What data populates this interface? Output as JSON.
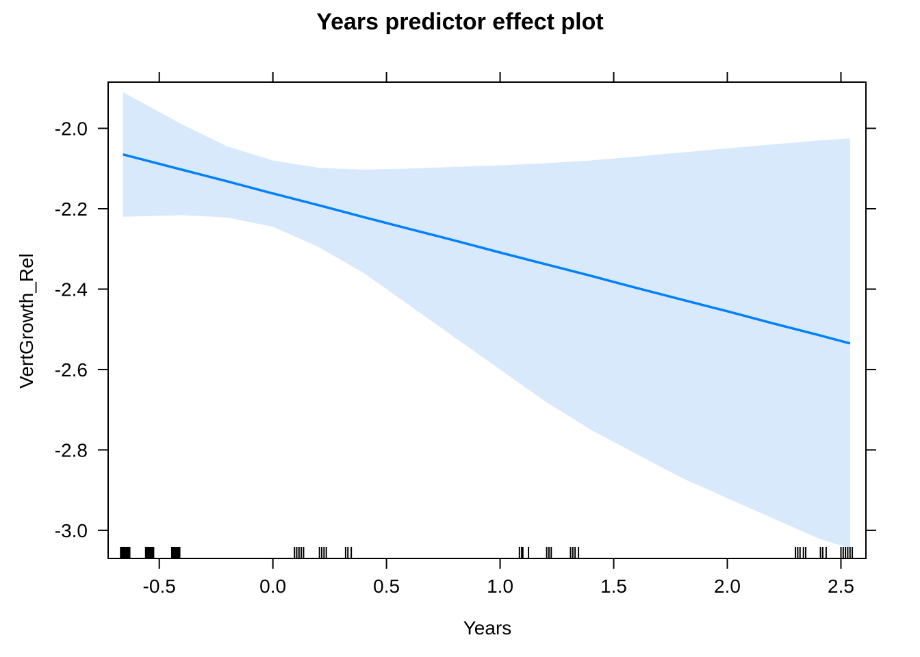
{
  "chart_data": {
    "type": "line",
    "title": "Years predictor effect plot",
    "xlabel": "Years",
    "ylabel": "VertGrowth_Rel",
    "xlim": [
      -0.725,
      2.61
    ],
    "ylim": [
      -3.07,
      -1.885
    ],
    "x_ticks": [
      -0.5,
      0.0,
      0.5,
      1.0,
      1.5,
      2.0,
      2.5
    ],
    "x_tick_labels": [
      "-0.5",
      "0.0",
      "0.5",
      "1.0",
      "1.5",
      "2.0",
      "2.5"
    ],
    "y_ticks": [
      -2.0,
      -2.2,
      -2.4,
      -2.6,
      -2.8,
      -3.0
    ],
    "y_tick_labels": [
      "-2.0",
      "-2.2",
      "-2.4",
      "-2.6",
      "-2.8",
      "-3.0"
    ],
    "grid": false,
    "colors": {
      "line": "#0080ff",
      "band": "#d8e9fc",
      "axis": "#000000",
      "rug": "#000000"
    },
    "series": [
      {
        "x": [
          -0.66,
          -0.4,
          -0.2,
          0.0,
          0.2,
          0.4,
          0.6,
          0.8,
          1.0,
          1.2,
          1.4,
          1.6,
          1.8,
          2.0,
          2.2,
          2.4,
          2.54
        ],
        "y": [
          -2.065,
          -2.103,
          -2.132,
          -2.162,
          -2.191,
          -2.221,
          -2.25,
          -2.279,
          -2.309,
          -2.338,
          -2.367,
          -2.397,
          -2.426,
          -2.455,
          -2.485,
          -2.514,
          -2.535
        ],
        "lower": [
          -2.22,
          -2.216,
          -2.222,
          -2.245,
          -2.295,
          -2.36,
          -2.44,
          -2.52,
          -2.6,
          -2.68,
          -2.75,
          -2.81,
          -2.87,
          -2.92,
          -2.97,
          -3.02,
          -3.045
        ],
        "upper": [
          -1.91,
          -1.99,
          -2.045,
          -2.08,
          -2.098,
          -2.103,
          -2.1,
          -2.096,
          -2.092,
          -2.087,
          -2.08,
          -2.07,
          -2.06,
          -2.05,
          -2.04,
          -2.03,
          -2.025
        ]
      }
    ],
    "rug": [
      -0.67,
      -0.665,
      -0.66,
      -0.655,
      -0.65,
      -0.645,
      -0.64,
      -0.635,
      -0.63,
      -0.56,
      -0.555,
      -0.55,
      -0.545,
      -0.54,
      -0.535,
      -0.53,
      -0.525,
      -0.445,
      -0.44,
      -0.435,
      -0.43,
      -0.425,
      -0.42,
      -0.415,
      -0.41,
      0.095,
      0.105,
      0.115,
      0.125,
      0.135,
      0.205,
      0.215,
      0.225,
      0.235,
      0.32,
      0.33,
      0.345,
      1.085,
      1.095,
      1.1,
      1.125,
      1.205,
      1.215,
      1.225,
      1.31,
      1.32,
      1.33,
      1.345,
      2.3,
      2.31,
      2.32,
      2.335,
      2.345,
      2.41,
      2.42,
      2.435,
      2.5,
      2.51,
      2.52,
      2.53,
      2.54,
      2.55
    ]
  }
}
